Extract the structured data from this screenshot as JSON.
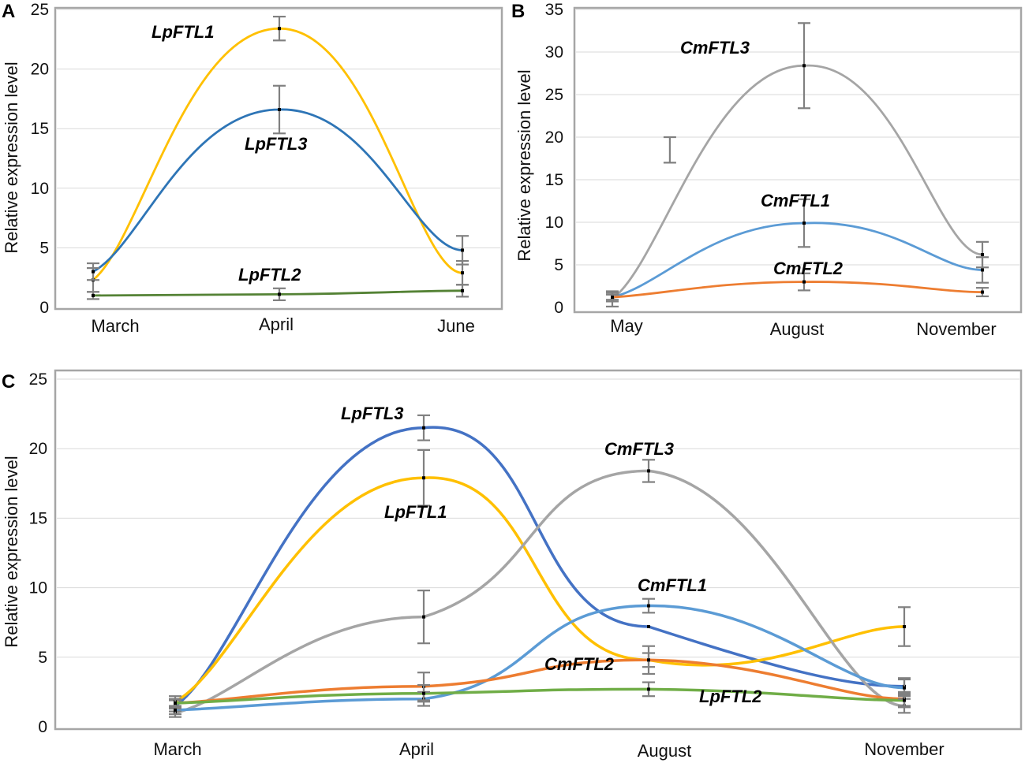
{
  "panels": [
    {
      "label": "A",
      "ylabel": "Relative expression level",
      "chart_data": {
        "type": "line",
        "categories": [
          "March",
          "April",
          "June"
        ],
        "ylim": [
          0,
          25
        ],
        "yticks": [
          0,
          5,
          10,
          15,
          20,
          25
        ],
        "grid": true,
        "series": [
          {
            "name": "LpFTL1",
            "color": "#ffc000",
            "values": [
              2.3,
              23.4,
              2.9
            ],
            "errors": [
              1.0,
              1.0,
              1.0
            ]
          },
          {
            "name": "LpFTL3",
            "color": "#2e75b6",
            "values": [
              3.0,
              16.6,
              4.8
            ],
            "errors": [
              0.7,
              2.0,
              1.2
            ]
          },
          {
            "name": "LpFTL2",
            "color": "#548235",
            "values": [
              1.0,
              1.1,
              1.4
            ],
            "errors": [
              0.3,
              0.5,
              0.5
            ]
          }
        ]
      }
    },
    {
      "label": "B",
      "ylabel": "Relative expression level",
      "chart_data": {
        "type": "line",
        "categories": [
          "May",
          "August",
          "November"
        ],
        "ylim": [
          0,
          35
        ],
        "yticks": [
          0,
          5,
          10,
          15,
          20,
          25,
          30,
          35
        ],
        "grid": true,
        "series": [
          {
            "name": "CmFTL3",
            "color": "#a5a5a5",
            "values": [
              1.0,
              28.4,
              6.2
            ],
            "errors": [
              0.9,
              5.0,
              1.5
            ]
          },
          {
            "name": "CmFTL1",
            "color": "#5b9bd5",
            "values": [
              1.2,
              9.9,
              4.4
            ],
            "errors": [
              0.5,
              2.8,
              1.5
            ]
          },
          {
            "name": "CmFTL2",
            "color": "#ed7d31",
            "values": [
              1.2,
              3.0,
              1.8
            ],
            "errors": [
              0.3,
              1.0,
              0.5
            ]
          }
        ],
        "extra_error_bar": {
          "x": 0.3,
          "value": 18.5,
          "error": 1.5
        }
      }
    },
    {
      "label": "C",
      "ylabel": "Relative expression level",
      "chart_data": {
        "type": "line",
        "categories": [
          "March",
          "April",
          "August",
          "November"
        ],
        "ylim": [
          0,
          25
        ],
        "yticks": [
          0,
          5,
          10,
          15,
          20,
          25
        ],
        "grid": true,
        "series": [
          {
            "name": "LpFTL3",
            "color": "#4472c4",
            "values": [
              1.5,
              21.5,
              7.2,
              2.9
            ],
            "errors": [
              0.4,
              0.9,
              0.0,
              0.6
            ]
          },
          {
            "name": "LpFTL1",
            "color": "#ffc000",
            "values": [
              1.8,
              17.9,
              4.8,
              7.2
            ],
            "errors": [
              0.4,
              2.0,
              1.0,
              1.4
            ]
          },
          {
            "name": "CmFTL3",
            "color": "#a5a5a5",
            "values": [
              1.0,
              7.9,
              18.4,
              1.5
            ],
            "errors": [
              0.3,
              1.9,
              0.8,
              0.5
            ]
          },
          {
            "name": "CmFTL1",
            "color": "#5b9bd5",
            "values": [
              1.2,
              2.0,
              8.7,
              2.8
            ],
            "errors": [
              0.3,
              0.5,
              0.5,
              0.6
            ]
          },
          {
            "name": "CmFTL2",
            "color": "#ed7d31",
            "values": [
              1.7,
              2.9,
              4.8,
              2.0
            ],
            "errors": [
              0.3,
              1.0,
              0.5,
              0.5
            ]
          },
          {
            "name": "LpFTL2",
            "color": "#70ad47",
            "values": [
              1.7,
              2.4,
              2.7,
              1.9
            ],
            "errors": [
              0.3,
              0.6,
              0.5,
              0.5
            ]
          }
        ]
      }
    }
  ]
}
